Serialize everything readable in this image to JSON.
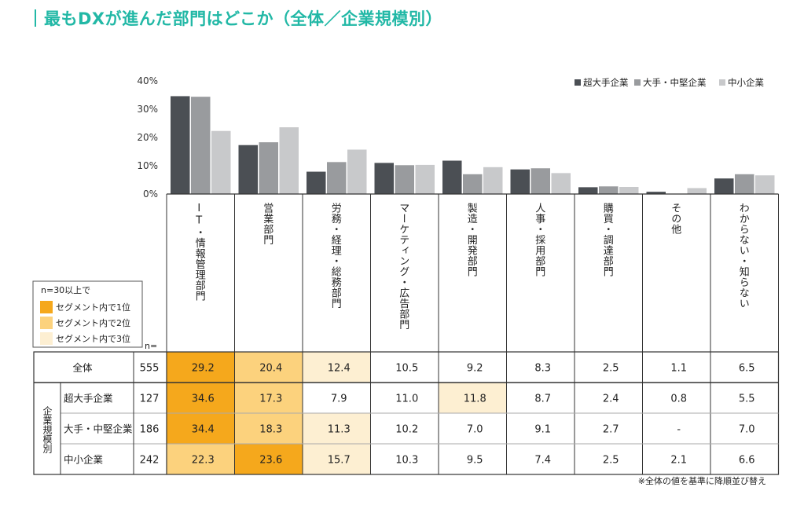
{
  "title": "最もDXが進んだ部門はどこか（全体／企業規模別）",
  "footnote": "※全体の値を基準に降順並び替え",
  "legend_box": {
    "caption": "n=30以上で",
    "items": [
      "セグメント内で1位",
      "セグメント内で2位",
      "セグメント内で3位"
    ],
    "colors": [
      "#f5a81c",
      "#fcd27d",
      "#fdefd2"
    ]
  },
  "n_label": "n=",
  "segment_group_label": "企業規模別",
  "colors": {
    "series": [
      "#4b4f54",
      "#999b9e",
      "#c8c9cb"
    ],
    "grid": "#cfcfcf",
    "border": "#333333",
    "row_divider": "#aaaaaa"
  },
  "chart_data": {
    "type": "bar",
    "categories": [
      "IT・情報管理部門",
      "営業部門",
      "労務・経理・総務部門",
      "マーケティング・広告部門",
      "製造・開発部門",
      "人事・採用部門",
      "購買・調達部門",
      "その他",
      "わからない・知らない"
    ],
    "yticks": [
      "40%",
      "30%",
      "20%",
      "10%",
      "0%"
    ],
    "ylim": [
      0,
      40
    ],
    "legend_position": "top-right",
    "series": [
      {
        "name": "超大手企業",
        "values": [
          34.6,
          17.3,
          7.9,
          11.0,
          11.8,
          8.7,
          2.4,
          0.8,
          5.5
        ]
      },
      {
        "name": "大手・中堅企業",
        "values": [
          34.4,
          18.3,
          11.3,
          10.2,
          7.0,
          9.1,
          2.7,
          0,
          7.0
        ]
      },
      {
        "name": "中小企業",
        "values": [
          22.3,
          23.6,
          15.7,
          10.3,
          9.5,
          7.4,
          2.5,
          2.1,
          6.6
        ]
      }
    ]
  },
  "table": {
    "rows": [
      {
        "label": "全体",
        "n": "555",
        "values": [
          "29.2",
          "20.4",
          "12.4",
          "10.5",
          "9.2",
          "8.3",
          "2.5",
          "1.1",
          "6.5"
        ],
        "ranks": [
          1,
          2,
          3,
          0,
          0,
          0,
          0,
          0,
          0
        ]
      },
      {
        "label": "超大手企業",
        "n": "127",
        "values": [
          "34.6",
          "17.3",
          "7.9",
          "11.0",
          "11.8",
          "8.7",
          "2.4",
          "0.8",
          "5.5"
        ],
        "ranks": [
          1,
          2,
          0,
          0,
          3,
          0,
          0,
          0,
          0
        ]
      },
      {
        "label": "大手・中堅企業",
        "n": "186",
        "values": [
          "34.4",
          "18.3",
          "11.3",
          "10.2",
          "7.0",
          "9.1",
          "2.7",
          "-",
          "7.0"
        ],
        "ranks": [
          1,
          2,
          3,
          0,
          0,
          0,
          0,
          0,
          0
        ]
      },
      {
        "label": "中小企業",
        "n": "242",
        "values": [
          "22.3",
          "23.6",
          "15.7",
          "10.3",
          "9.5",
          "7.4",
          "2.5",
          "2.1",
          "6.6"
        ],
        "ranks": [
          2,
          1,
          3,
          0,
          0,
          0,
          0,
          0,
          0
        ]
      }
    ]
  }
}
